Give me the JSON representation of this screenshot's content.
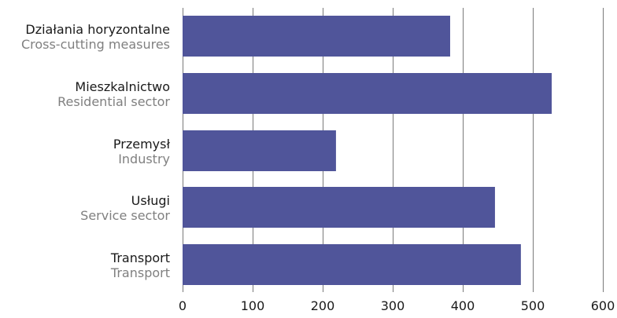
{
  "chart_data": {
    "type": "bar",
    "orientation": "horizontal",
    "categories": [
      {
        "label": "Działania horyzontalne",
        "sublabel": "Cross-cutting measures"
      },
      {
        "label": "Mieszkalnictwo",
        "sublabel": "Residential sector"
      },
      {
        "label": "Przemysł",
        "sublabel": "Industry"
      },
      {
        "label": "Usługi",
        "sublabel": "Service sector"
      },
      {
        "label": "Transport",
        "sublabel": "Transport"
      }
    ],
    "values": [
      382,
      527,
      219,
      446,
      483
    ],
    "xlim": [
      0,
      600
    ],
    "xticks": [
      0,
      100,
      200,
      300,
      400,
      500,
      600
    ],
    "grid": true,
    "bar_color": "#50559a",
    "grid_color": "#7a7a7a",
    "label_color": "#1a1a1a",
    "sublabel_color": "#808080"
  }
}
